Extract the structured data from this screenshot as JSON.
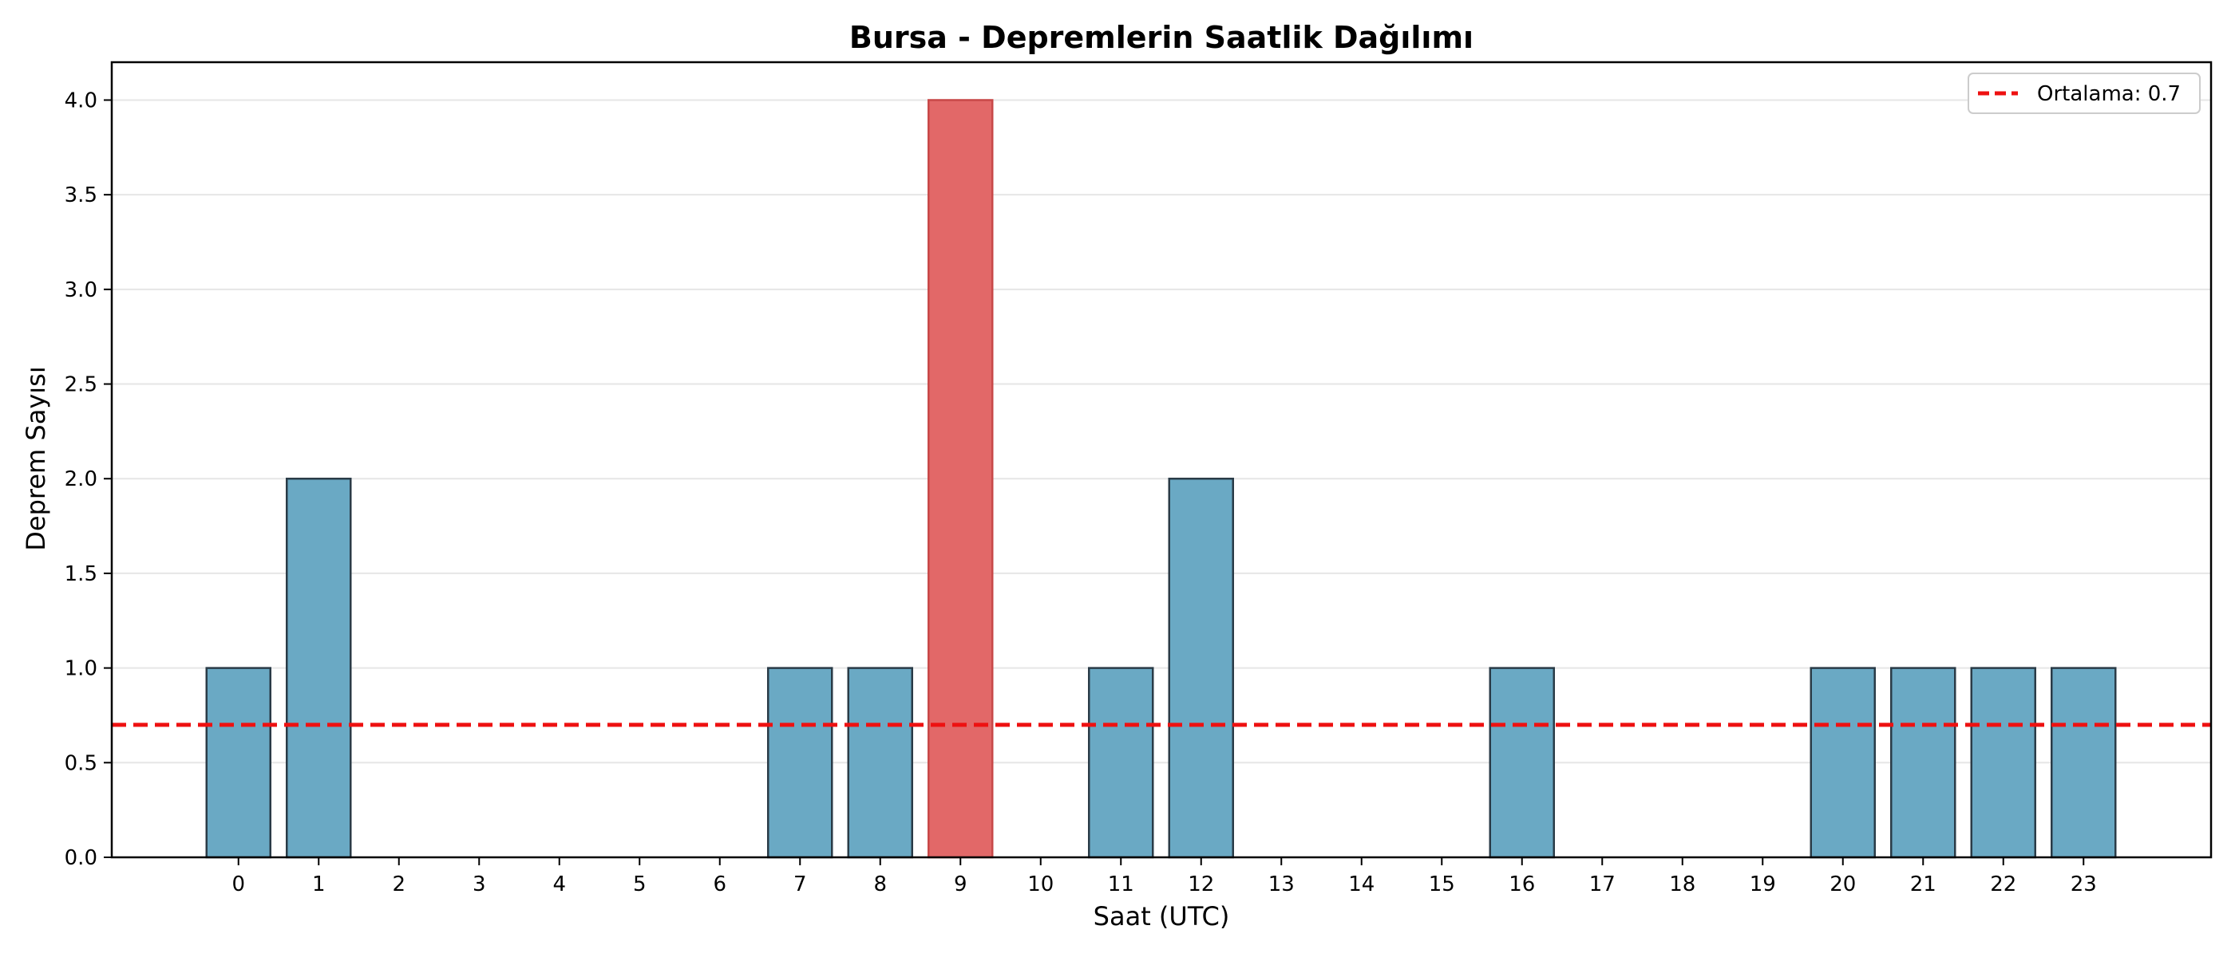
{
  "chart_data": {
    "type": "bar",
    "title": "Bursa - Depremlerin Saatlik Dağılımı",
    "xlabel": "Saat (UTC)",
    "ylabel": "Deprem Sayısı",
    "categories": [
      "0",
      "1",
      "2",
      "3",
      "4",
      "5",
      "6",
      "7",
      "8",
      "9",
      "10",
      "11",
      "12",
      "13",
      "14",
      "15",
      "16",
      "17",
      "18",
      "19",
      "20",
      "21",
      "22",
      "23"
    ],
    "values": [
      1,
      2,
      0,
      0,
      0,
      0,
      0,
      1,
      1,
      4,
      0,
      1,
      2,
      0,
      0,
      0,
      1,
      0,
      0,
      0,
      1,
      1,
      1,
      1
    ],
    "ylim": [
      0,
      4.2
    ],
    "yticks": [
      "0.0",
      "0.5",
      "1.0",
      "1.5",
      "2.0",
      "2.5",
      "3.0",
      "3.5",
      "4.0"
    ],
    "grid": "y",
    "bar_color": "#6aa9c4",
    "highlight_color": "#e26868",
    "highlight_category": "9",
    "mean_line": {
      "value": 0.7,
      "label": "Ortalama: 0.7",
      "color": "#ee1111",
      "style": "dashed"
    },
    "legend": {
      "position": "top-right"
    }
  }
}
